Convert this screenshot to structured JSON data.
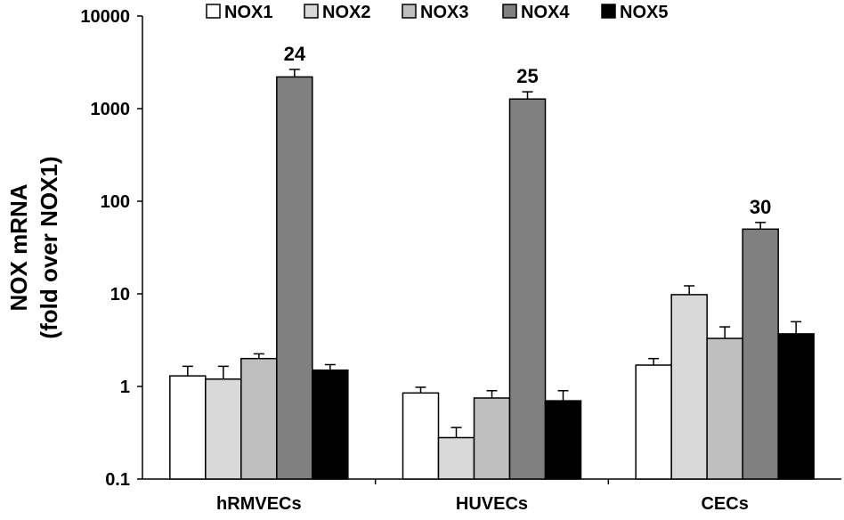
{
  "chart_data": {
    "type": "bar",
    "ylabel_line1": "NOX mRNA",
    "ylabel_line2": "(fold over NOX1)",
    "yscale": "log",
    "ylim": [
      0.1,
      10000
    ],
    "yticks": [
      0.1,
      1,
      10,
      100,
      1000,
      10000
    ],
    "ytick_labels": [
      "0.1",
      "1",
      "10",
      "100",
      "1000",
      "10000"
    ],
    "categories": [
      "hRMVECs",
      "HUVECs",
      "CECs"
    ],
    "series": [
      {
        "name": "NOX1",
        "color": "#ffffff",
        "values": [
          1.3,
          0.85,
          1.7
        ],
        "errors": [
          1.65,
          0.98,
          2.0
        ]
      },
      {
        "name": "NOX2",
        "color": "#d9d9d9",
        "values": [
          1.2,
          0.28,
          9.8
        ],
        "errors": [
          1.65,
          0.36,
          12.2
        ]
      },
      {
        "name": "NOX3",
        "color": "#bfbfbf",
        "values": [
          2.0,
          0.75,
          3.3
        ],
        "errors": [
          2.25,
          0.9,
          4.4
        ]
      },
      {
        "name": "NOX4",
        "color": "#808080",
        "values": [
          2200,
          1270,
          50
        ],
        "errors": [
          2650,
          1520,
          59
        ]
      },
      {
        "name": "NOX5",
        "color": "#000000",
        "values": [
          1.5,
          0.7,
          3.7
        ],
        "errors": [
          1.72,
          0.9,
          5.0
        ]
      }
    ],
    "annotations": [
      {
        "category": "hRMVECs",
        "series": "NOX4",
        "text": "24"
      },
      {
        "category": "HUVECs",
        "series": "NOX4",
        "text": "25"
      },
      {
        "category": "CECs",
        "series": "NOX4",
        "text": "30"
      }
    ],
    "legend_position": "top",
    "grid": false
  }
}
